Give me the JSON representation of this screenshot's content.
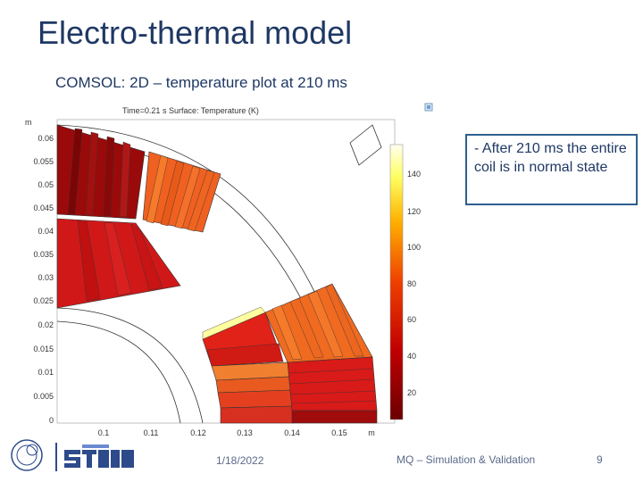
{
  "slide": {
    "title": "Electro-thermal model",
    "subtitle": "COMSOL: 2D – temperature plot at 210 ms",
    "note": "- After 210 ms the entire coil is in normal state",
    "footer_date": "1/18/2022",
    "footer_center": "MQ – Simulation & Validation",
    "footer_page": "9"
  },
  "plot": {
    "header": "Time=0.21 s   Surface: Temperature (K)",
    "axis_unit_y": "m",
    "axis_unit_x": "m",
    "y_ticks": [
      "0.06",
      "0.055",
      "0.05",
      "0.045",
      "0.04",
      "0.035",
      "0.03",
      "0.025",
      "0.02",
      "0.015",
      "0.01",
      "0.005",
      "0"
    ],
    "x_ticks": [
      "0.1",
      "0.11",
      "0.12",
      "0.13",
      "0.14",
      "0.15"
    ],
    "colorbar_ticks": [
      "140",
      "120",
      "100",
      "80",
      "60",
      "40",
      "20"
    ]
  },
  "icons": {
    "cern_logo": "cern-logo-icon",
    "steam_logo": "steam-logo-icon",
    "comsol_icon": "comsol-icon"
  },
  "colors": {
    "title": "#1f3864",
    "note_border": "#2f5f8f"
  }
}
